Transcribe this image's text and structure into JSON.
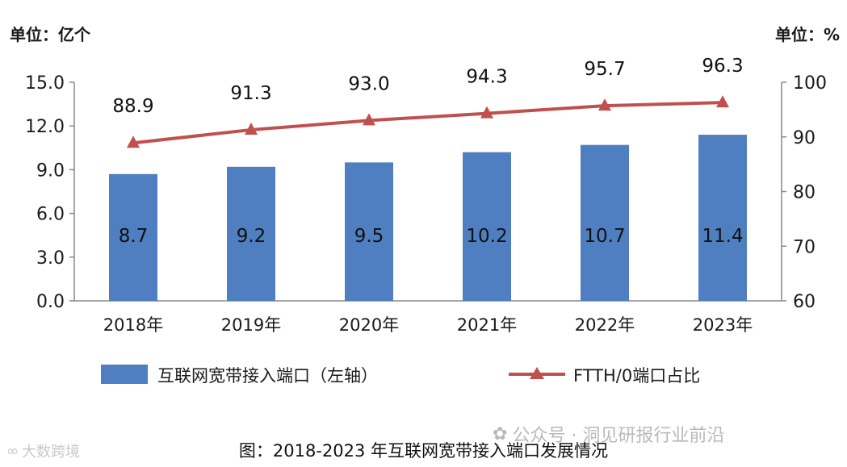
{
  "chart_data": {
    "type": "bar+line",
    "left_unit": "单位：亿个",
    "right_unit": "单位：%",
    "categories": [
      "2018年",
      "2019年",
      "2020年",
      "2021年",
      "2022年",
      "2023年"
    ],
    "left_axis": {
      "ylim": [
        0,
        15
      ],
      "ticks": [
        "0.0",
        "3.0",
        "6.0",
        "9.0",
        "12.0",
        "15.0"
      ]
    },
    "right_axis": {
      "ylim": [
        60,
        100
      ],
      "ticks": [
        "60",
        "70",
        "80",
        "90",
        "100"
      ]
    },
    "series": [
      {
        "name": "互联网宽带接入端口（左轴）",
        "type": "bar",
        "axis": "left",
        "values": [
          8.7,
          9.2,
          9.5,
          10.2,
          10.7,
          11.4
        ],
        "labels": [
          "8.7",
          "9.2",
          "9.5",
          "10.2",
          "10.7",
          "11.4"
        ],
        "color": "#4f7fc0"
      },
      {
        "name": "FTTH/0端口占比",
        "type": "line",
        "axis": "right",
        "values": [
          88.9,
          91.3,
          93.0,
          94.3,
          95.7,
          96.3
        ],
        "labels": [
          "88.9",
          "91.3",
          "93.0",
          "94.3",
          "95.7",
          "96.3"
        ],
        "color": "#c0504d"
      }
    ],
    "grid": false,
    "legend": "bottom"
  },
  "caption": "图：2018-2023 年互联网宽带接入端口发展情况",
  "watermark_right": "公众号 · 洞见研报行业前沿",
  "watermark_left": "大数跨境"
}
